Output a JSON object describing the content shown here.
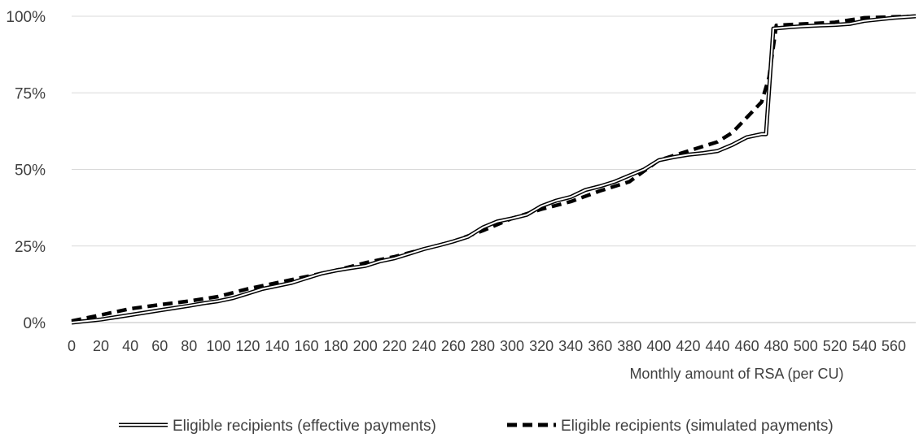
{
  "chart_data": {
    "type": "line",
    "title": "",
    "xlabel": "Monthly amount of RSA (per CU)",
    "ylabel": "",
    "xlim": [
      0,
      575
    ],
    "ylim": [
      0,
      100
    ],
    "grid": "horizontal",
    "legend_position": "bottom",
    "y_ticks": [
      {
        "value": 0,
        "label": "0%"
      },
      {
        "value": 25,
        "label": "25%"
      },
      {
        "value": 50,
        "label": "50%"
      },
      {
        "value": 75,
        "label": "75%"
      },
      {
        "value": 100,
        "label": "100%"
      }
    ],
    "x_ticks": [
      "0",
      "20",
      "40",
      "60",
      "80",
      "100",
      "120",
      "140",
      "160",
      "180",
      "200",
      "220",
      "240",
      "260",
      "280",
      "300",
      "320",
      "340",
      "360",
      "380",
      "400",
      "420",
      "440",
      "460",
      "480",
      "500",
      "520",
      "540",
      "560"
    ],
    "series": [
      {
        "name": "Eligible recipients (effective payments)",
        "style": "double-outline",
        "color": "#000000",
        "x": [
          0,
          20,
          40,
          60,
          80,
          90,
          100,
          110,
          120,
          130,
          140,
          150,
          160,
          170,
          180,
          190,
          200,
          210,
          220,
          230,
          240,
          250,
          260,
          270,
          280,
          290,
          300,
          310,
          320,
          330,
          340,
          350,
          360,
          370,
          380,
          390,
          400,
          410,
          420,
          430,
          440,
          450,
          460,
          470,
          473,
          478,
          490,
          500,
          510,
          520,
          530,
          540,
          550,
          560,
          575
        ],
        "y": [
          0,
          1,
          2.5,
          4,
          5.5,
          6.3,
          7,
          8,
          9.5,
          11,
          12,
          13,
          14.5,
          16,
          17,
          17.8,
          18.5,
          20,
          21,
          22.5,
          24,
          25.2,
          26.5,
          28,
          31,
          33,
          34,
          35.2,
          38,
          39.8,
          41,
          43.3,
          44.5,
          46,
          48,
          50,
          53,
          54,
          54.8,
          55.3,
          56,
          58,
          60.5,
          61.5,
          61.5,
          96,
          96.5,
          96.8,
          97,
          97.2,
          97.5,
          98.5,
          99,
          99.5,
          100
        ]
      },
      {
        "name": "Eligible recipients (simulated payments)",
        "style": "dashed",
        "color": "#000000",
        "x": [
          0,
          20,
          40,
          60,
          80,
          100,
          120,
          140,
          160,
          180,
          200,
          220,
          240,
          260,
          280,
          300,
          320,
          340,
          360,
          380,
          400,
          420,
          440,
          450,
          460,
          470,
          475,
          480,
          490,
          500,
          520,
          540,
          560,
          575
        ],
        "y": [
          0.5,
          2.5,
          4.5,
          5.8,
          7,
          8.5,
          11,
          13,
          15,
          17,
          19.5,
          21.5,
          24,
          26.5,
          30,
          34,
          37,
          39.5,
          43,
          46,
          53,
          56,
          59,
          62,
          67,
          72,
          80,
          97,
          97.3,
          97.5,
          98,
          99.5,
          99.8,
          100
        ]
      }
    ]
  }
}
